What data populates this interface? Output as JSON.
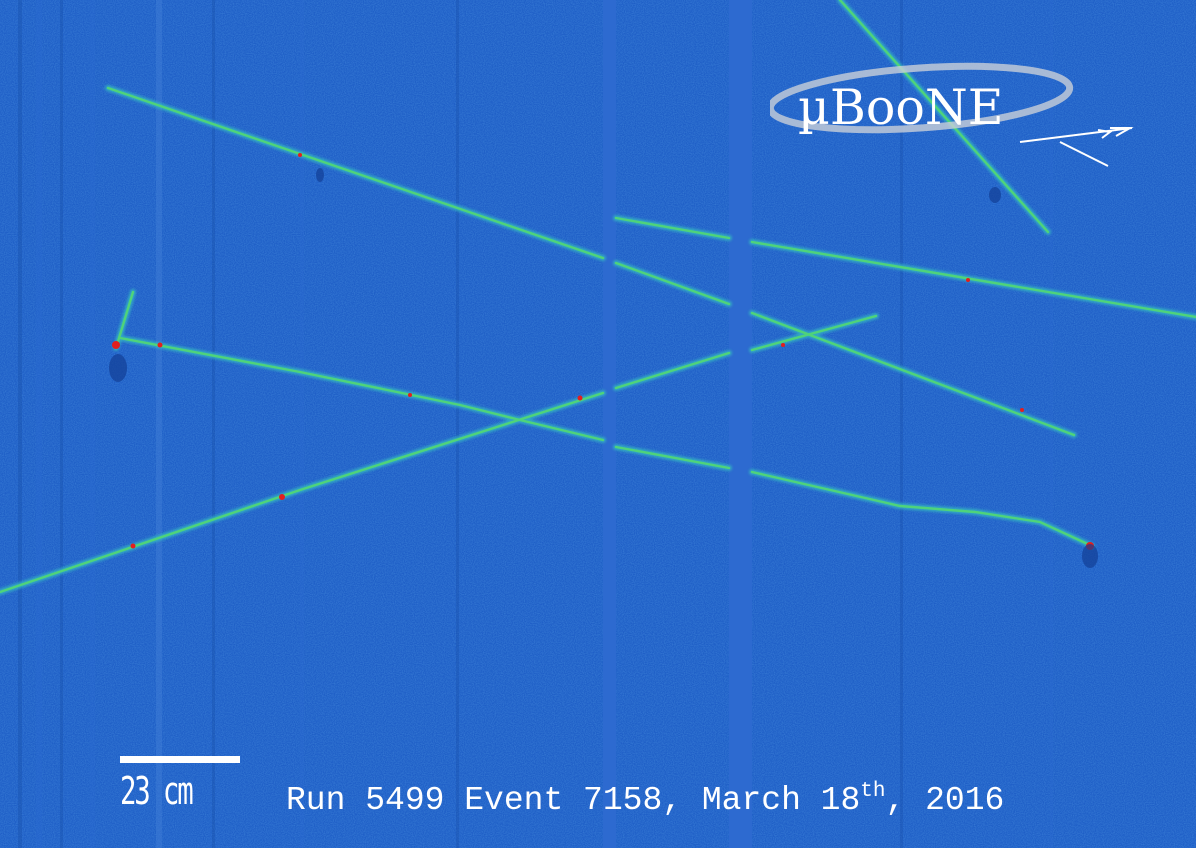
{
  "logo": {
    "text": "µBooNE"
  },
  "scale": {
    "label": "23 cm"
  },
  "event": {
    "prefix": "Run 5499 Event 7158, March 18",
    "suffix_sup": "th",
    "tail": ", 2016"
  },
  "colors": {
    "background": "#1f5fc7",
    "track_core": "#4fd37a",
    "track_edge": "#36b8c2",
    "hotspot": "#e31e1e",
    "dead_channel": "#2d6ad0",
    "text": "#ffffff"
  }
}
